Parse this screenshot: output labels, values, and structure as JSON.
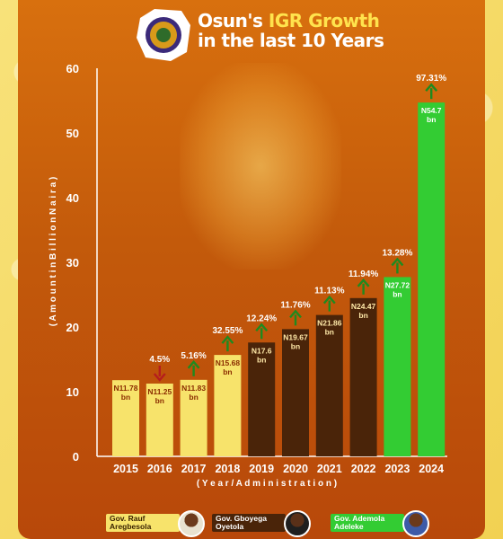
{
  "header": {
    "title_line1_prefix": "Osun's ",
    "title_line1_highlight": "IGR Growth",
    "title_line2": "in the last 10 Years"
  },
  "chart_data": {
    "type": "bar",
    "title": "Osun's IGR Growth in the last 10 Years",
    "ylabel": "( A m o u n t   i n   B i l l i o n   N a i r a )",
    "xlabel": "( Y e a r / A d m i n i s t r a t i o n )",
    "ylim": [
      0,
      60
    ],
    "yticks": [
      0,
      10,
      20,
      30,
      40,
      50,
      60
    ],
    "grid": false,
    "categories": [
      "2015",
      "2016",
      "2017",
      "2018",
      "2019",
      "2020",
      "2021",
      "2022",
      "2023",
      "2024"
    ],
    "values": [
      11.78,
      11.25,
      11.83,
      15.68,
      17.6,
      19.67,
      21.86,
      24.47,
      27.72,
      54.7
    ],
    "value_labels_line1": [
      "N11.78",
      "N11.25",
      "N11.83",
      "N15.68",
      "N17.6",
      "N19.67",
      "N21.86",
      "N24.47",
      "N27.72",
      "N54.7"
    ],
    "value_label_unit": "bn",
    "growth_labels": [
      "",
      "4.5%",
      "5.16%",
      "32.55%",
      "12.24%",
      "11.76%",
      "11.13%",
      "11.94%",
      "13.28%",
      "97.31%"
    ],
    "growth_direction": [
      "",
      "down",
      "up",
      "up",
      "up",
      "up",
      "up",
      "up",
      "up",
      "up"
    ],
    "administration": [
      "Aregbesola",
      "Aregbesola",
      "Aregbesola",
      "Aregbesola",
      "Oyetola",
      "Oyetola",
      "Oyetola",
      "Oyetola",
      "Adeleke",
      "Adeleke"
    ]
  },
  "legend": [
    {
      "label_line1": "Gov. Rauf",
      "label_line2": "Aregbesola",
      "color": "#f7e36b",
      "text_color": "#3a2200"
    },
    {
      "label_line1": "Gov. Gboyega",
      "label_line2": "Oyetola",
      "color": "#4a2409",
      "text_color": "#ffffff"
    },
    {
      "label_line1": "Gov. Ademola",
      "label_line2": "Adeleke",
      "color": "#33cc33",
      "text_color": "#ffffff"
    }
  ],
  "colors": {
    "Aregbesola": "#f7e36b",
    "Oyetola": "#4a2409",
    "Adeleke": "#33cc33",
    "arrow_up": "#1f8a1f",
    "arrow_down": "#b51d1d",
    "bar_text_dark": "#8a2c00",
    "bar_text_light": "#ffe9a8"
  },
  "icons": [
    "osun-state-seal-icon",
    "governor-portrait",
    "up-arrow-icon",
    "down-arrow-icon"
  ]
}
